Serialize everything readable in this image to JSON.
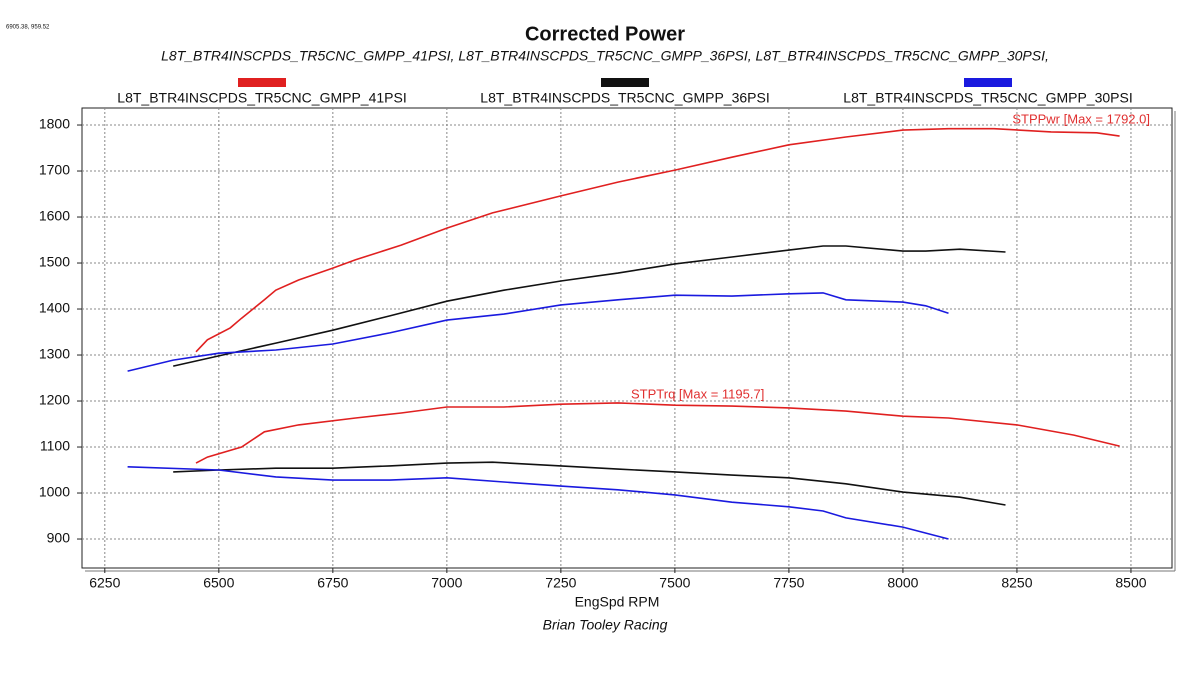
{
  "corner_text": "6905.38, 959.52",
  "chart_data": {
    "type": "line",
    "title": "Corrected Power",
    "subtitle": "L8T_BTR4INSCPDS_TR5CNC_GMPP_41PSI, L8T_BTR4INSCPDS_TR5CNC_GMPP_36PSI, L8T_BTR4INSCPDS_TR5CNC_GMPP_30PSI,",
    "x_label": "EngSpd RPM",
    "footer": "Brian Tooley Racing",
    "annotations": [
      {
        "text": "STPPwr [Max = 1792.0]",
        "color": "#e03030"
      },
      {
        "text": "STPTrq [Max = 1195.7]",
        "color": "#e03030"
      }
    ],
    "xlim": [
      6200,
      8590
    ],
    "ylim": [
      837,
      1837
    ],
    "xticks": [
      6250,
      6500,
      6750,
      7000,
      7250,
      7500,
      7750,
      8000,
      8250,
      8500
    ],
    "yticks": [
      900,
      1000,
      1100,
      1200,
      1300,
      1400,
      1500,
      1600,
      1700,
      1800
    ],
    "grid": true,
    "series": [
      {
        "name": "L8T_BTR4INSCPDS_TR5CNC_GMPP_41PSI",
        "color": "#e02020",
        "x": [
          6450,
          6475,
          6525,
          6550,
          6600,
          6625,
          6675,
          6750,
          6800,
          6900,
          7000,
          7100,
          7250,
          7375,
          7500,
          7625,
          7750,
          7875,
          8000,
          8100,
          8200,
          8325,
          8425,
          8475
        ],
        "power": [
          1307,
          1333,
          1359,
          1380,
          1420,
          1441,
          1463,
          1489,
          1507,
          1539,
          1576,
          1609,
          1646,
          1676,
          1702,
          1730,
          1757,
          1774,
          1789,
          1792,
          1792,
          1785,
          1783,
          1776
        ],
        "torque_x": [
          6450,
          6475,
          6550,
          6600,
          6675,
          6800,
          6900,
          7000,
          7125,
          7250,
          7375,
          7500,
          7625,
          7750,
          7875,
          8000,
          8100,
          8250,
          8375,
          8475
        ],
        "torque": [
          1065,
          1078,
          1100,
          1133,
          1148,
          1163,
          1174,
          1187,
          1187,
          1193,
          1196,
          1191,
          1189,
          1185,
          1178,
          1167,
          1163,
          1148,
          1126,
          1102
        ]
      },
      {
        "name": "L8T_BTR4INSCPDS_TR5CNC_GMPP_36PSI",
        "color": "#111111",
        "x": [
          6400,
          6500,
          6625,
          6750,
          6875,
          7000,
          7125,
          7250,
          7375,
          7500,
          7625,
          7750,
          7825,
          7875,
          8000,
          8050,
          8125,
          8225
        ],
        "power": [
          1276,
          1298,
          1326,
          1354,
          1385,
          1417,
          1441,
          1461,
          1478,
          1498,
          1513,
          1528,
          1537,
          1537,
          1526,
          1526,
          1530,
          1524
        ],
        "torque_x": [
          6400,
          6500,
          6625,
          6750,
          6875,
          7000,
          7100,
          7250,
          7375,
          7500,
          7625,
          7750,
          7875,
          8000,
          8125,
          8225
        ],
        "torque": [
          1046,
          1050,
          1054,
          1054,
          1059,
          1065,
          1067,
          1059,
          1052,
          1046,
          1039,
          1033,
          1020,
          1002,
          991,
          974
        ]
      },
      {
        "name": "L8T_BTR4INSCPDS_TR5CNC_GMPP_30PSI",
        "color": "#1a1adf",
        "x": [
          6300,
          6400,
          6500,
          6625,
          6750,
          6875,
          7000,
          7125,
          7250,
          7375,
          7500,
          7625,
          7750,
          7825,
          7875,
          8000,
          8050,
          8100
        ],
        "power": [
          1265,
          1289,
          1304,
          1311,
          1324,
          1348,
          1376,
          1389,
          1409,
          1420,
          1430,
          1428,
          1433,
          1435,
          1420,
          1415,
          1407,
          1391
        ],
        "torque_x": [
          6300,
          6500,
          6625,
          6750,
          6875,
          7000,
          7125,
          7250,
          7375,
          7500,
          7625,
          7750,
          7825,
          7875,
          8000,
          8100
        ],
        "torque": [
          1057,
          1050,
          1035,
          1028,
          1028,
          1033,
          1024,
          1015,
          1007,
          996,
          980,
          970,
          961,
          946,
          926,
          900
        ]
      }
    ]
  }
}
